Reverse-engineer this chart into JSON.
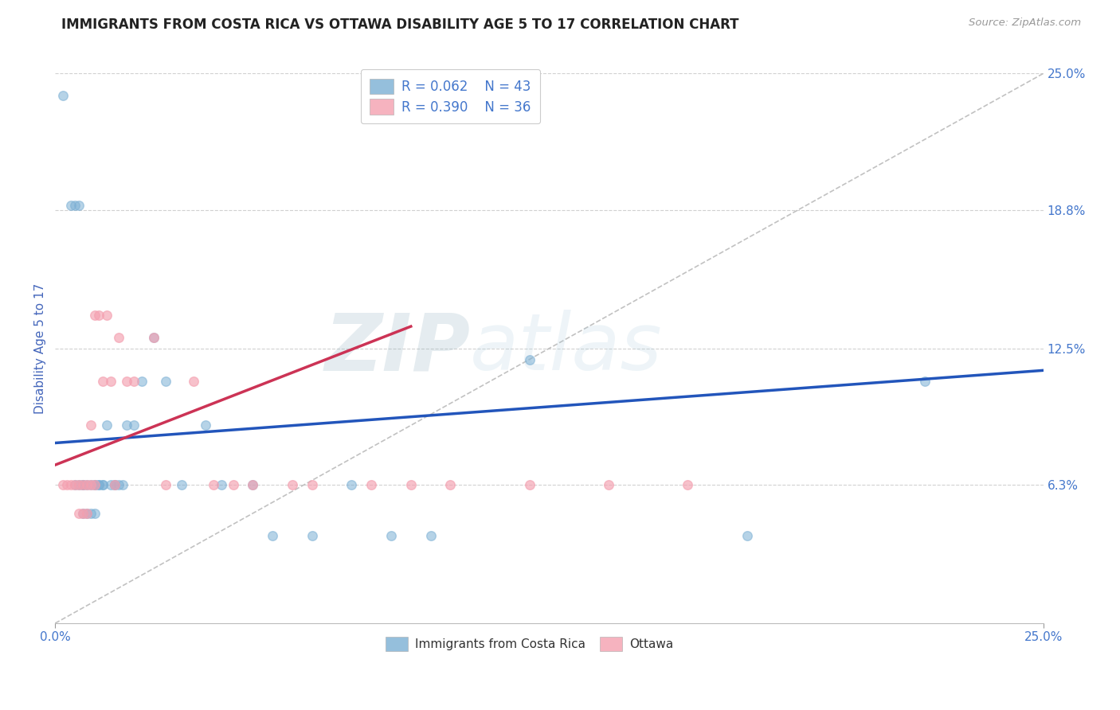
{
  "title": "IMMIGRANTS FROM COSTA RICA VS OTTAWA DISABILITY AGE 5 TO 17 CORRELATION CHART",
  "source_text": "Source: ZipAtlas.com",
  "ylabel": "Disability Age 5 to 17",
  "xlim": [
    0.0,
    0.25
  ],
  "ylim": [
    0.0,
    0.25
  ],
  "xtick_labels": [
    "0.0%",
    "25.0%"
  ],
  "xtick_positions": [
    0.0,
    0.25
  ],
  "ytick_labels": [
    "6.3%",
    "12.5%",
    "18.8%",
    "25.0%"
  ],
  "ytick_positions": [
    0.063,
    0.125,
    0.188,
    0.25
  ],
  "grid_color": "#cccccc",
  "background_color": "#ffffff",
  "series1_name": "Immigrants from Costa Rica",
  "series1_R": "0.062",
  "series1_N": "43",
  "series1_color": "#7bafd4",
  "series1_x": [
    0.002,
    0.004,
    0.005,
    0.005,
    0.006,
    0.006,
    0.007,
    0.007,
    0.007,
    0.008,
    0.008,
    0.009,
    0.009,
    0.01,
    0.01,
    0.01,
    0.011,
    0.011,
    0.012,
    0.012,
    0.013,
    0.014,
    0.015,
    0.015,
    0.016,
    0.017,
    0.018,
    0.02,
    0.022,
    0.025,
    0.028,
    0.032,
    0.038,
    0.042,
    0.05,
    0.055,
    0.065,
    0.075,
    0.085,
    0.095,
    0.12,
    0.175,
    0.22
  ],
  "series1_y": [
    0.24,
    0.19,
    0.19,
    0.063,
    0.19,
    0.063,
    0.063,
    0.063,
    0.05,
    0.063,
    0.05,
    0.063,
    0.05,
    0.063,
    0.063,
    0.05,
    0.063,
    0.063,
    0.063,
    0.063,
    0.09,
    0.063,
    0.063,
    0.063,
    0.063,
    0.063,
    0.09,
    0.09,
    0.11,
    0.13,
    0.11,
    0.063,
    0.09,
    0.063,
    0.063,
    0.04,
    0.04,
    0.063,
    0.04,
    0.04,
    0.12,
    0.04,
    0.11
  ],
  "series2_name": "Ottawa",
  "series2_R": "0.390",
  "series2_N": "36",
  "series2_color": "#f4a0b0",
  "series2_x": [
    0.002,
    0.003,
    0.004,
    0.005,
    0.006,
    0.006,
    0.007,
    0.007,
    0.008,
    0.008,
    0.009,
    0.009,
    0.01,
    0.01,
    0.011,
    0.012,
    0.013,
    0.014,
    0.015,
    0.016,
    0.018,
    0.02,
    0.025,
    0.028,
    0.035,
    0.04,
    0.045,
    0.05,
    0.06,
    0.065,
    0.08,
    0.09,
    0.1,
    0.12,
    0.14,
    0.16
  ],
  "series2_y": [
    0.063,
    0.063,
    0.063,
    0.063,
    0.063,
    0.05,
    0.063,
    0.05,
    0.063,
    0.05,
    0.09,
    0.063,
    0.14,
    0.063,
    0.14,
    0.11,
    0.14,
    0.11,
    0.063,
    0.13,
    0.11,
    0.11,
    0.13,
    0.063,
    0.11,
    0.063,
    0.063,
    0.063,
    0.063,
    0.063,
    0.063,
    0.063,
    0.063,
    0.063,
    0.063,
    0.063
  ],
  "trend1_x_start": 0.0,
  "trend1_x_end": 0.25,
  "trend1_y_start": 0.082,
  "trend1_y_end": 0.115,
  "trend2_x_start": 0.0,
  "trend2_x_end": 0.09,
  "trend2_y_start": 0.072,
  "trend2_y_end": 0.135,
  "ref_line_x": [
    0.0,
    0.25
  ],
  "ref_line_y": [
    0.0,
    0.25
  ],
  "title_fontsize": 12,
  "label_fontsize": 11,
  "tick_fontsize": 11,
  "legend_fontsize": 12,
  "marker_size": 70,
  "title_color": "#222222",
  "axis_label_color": "#4466bb",
  "tick_color": "#4477cc"
}
